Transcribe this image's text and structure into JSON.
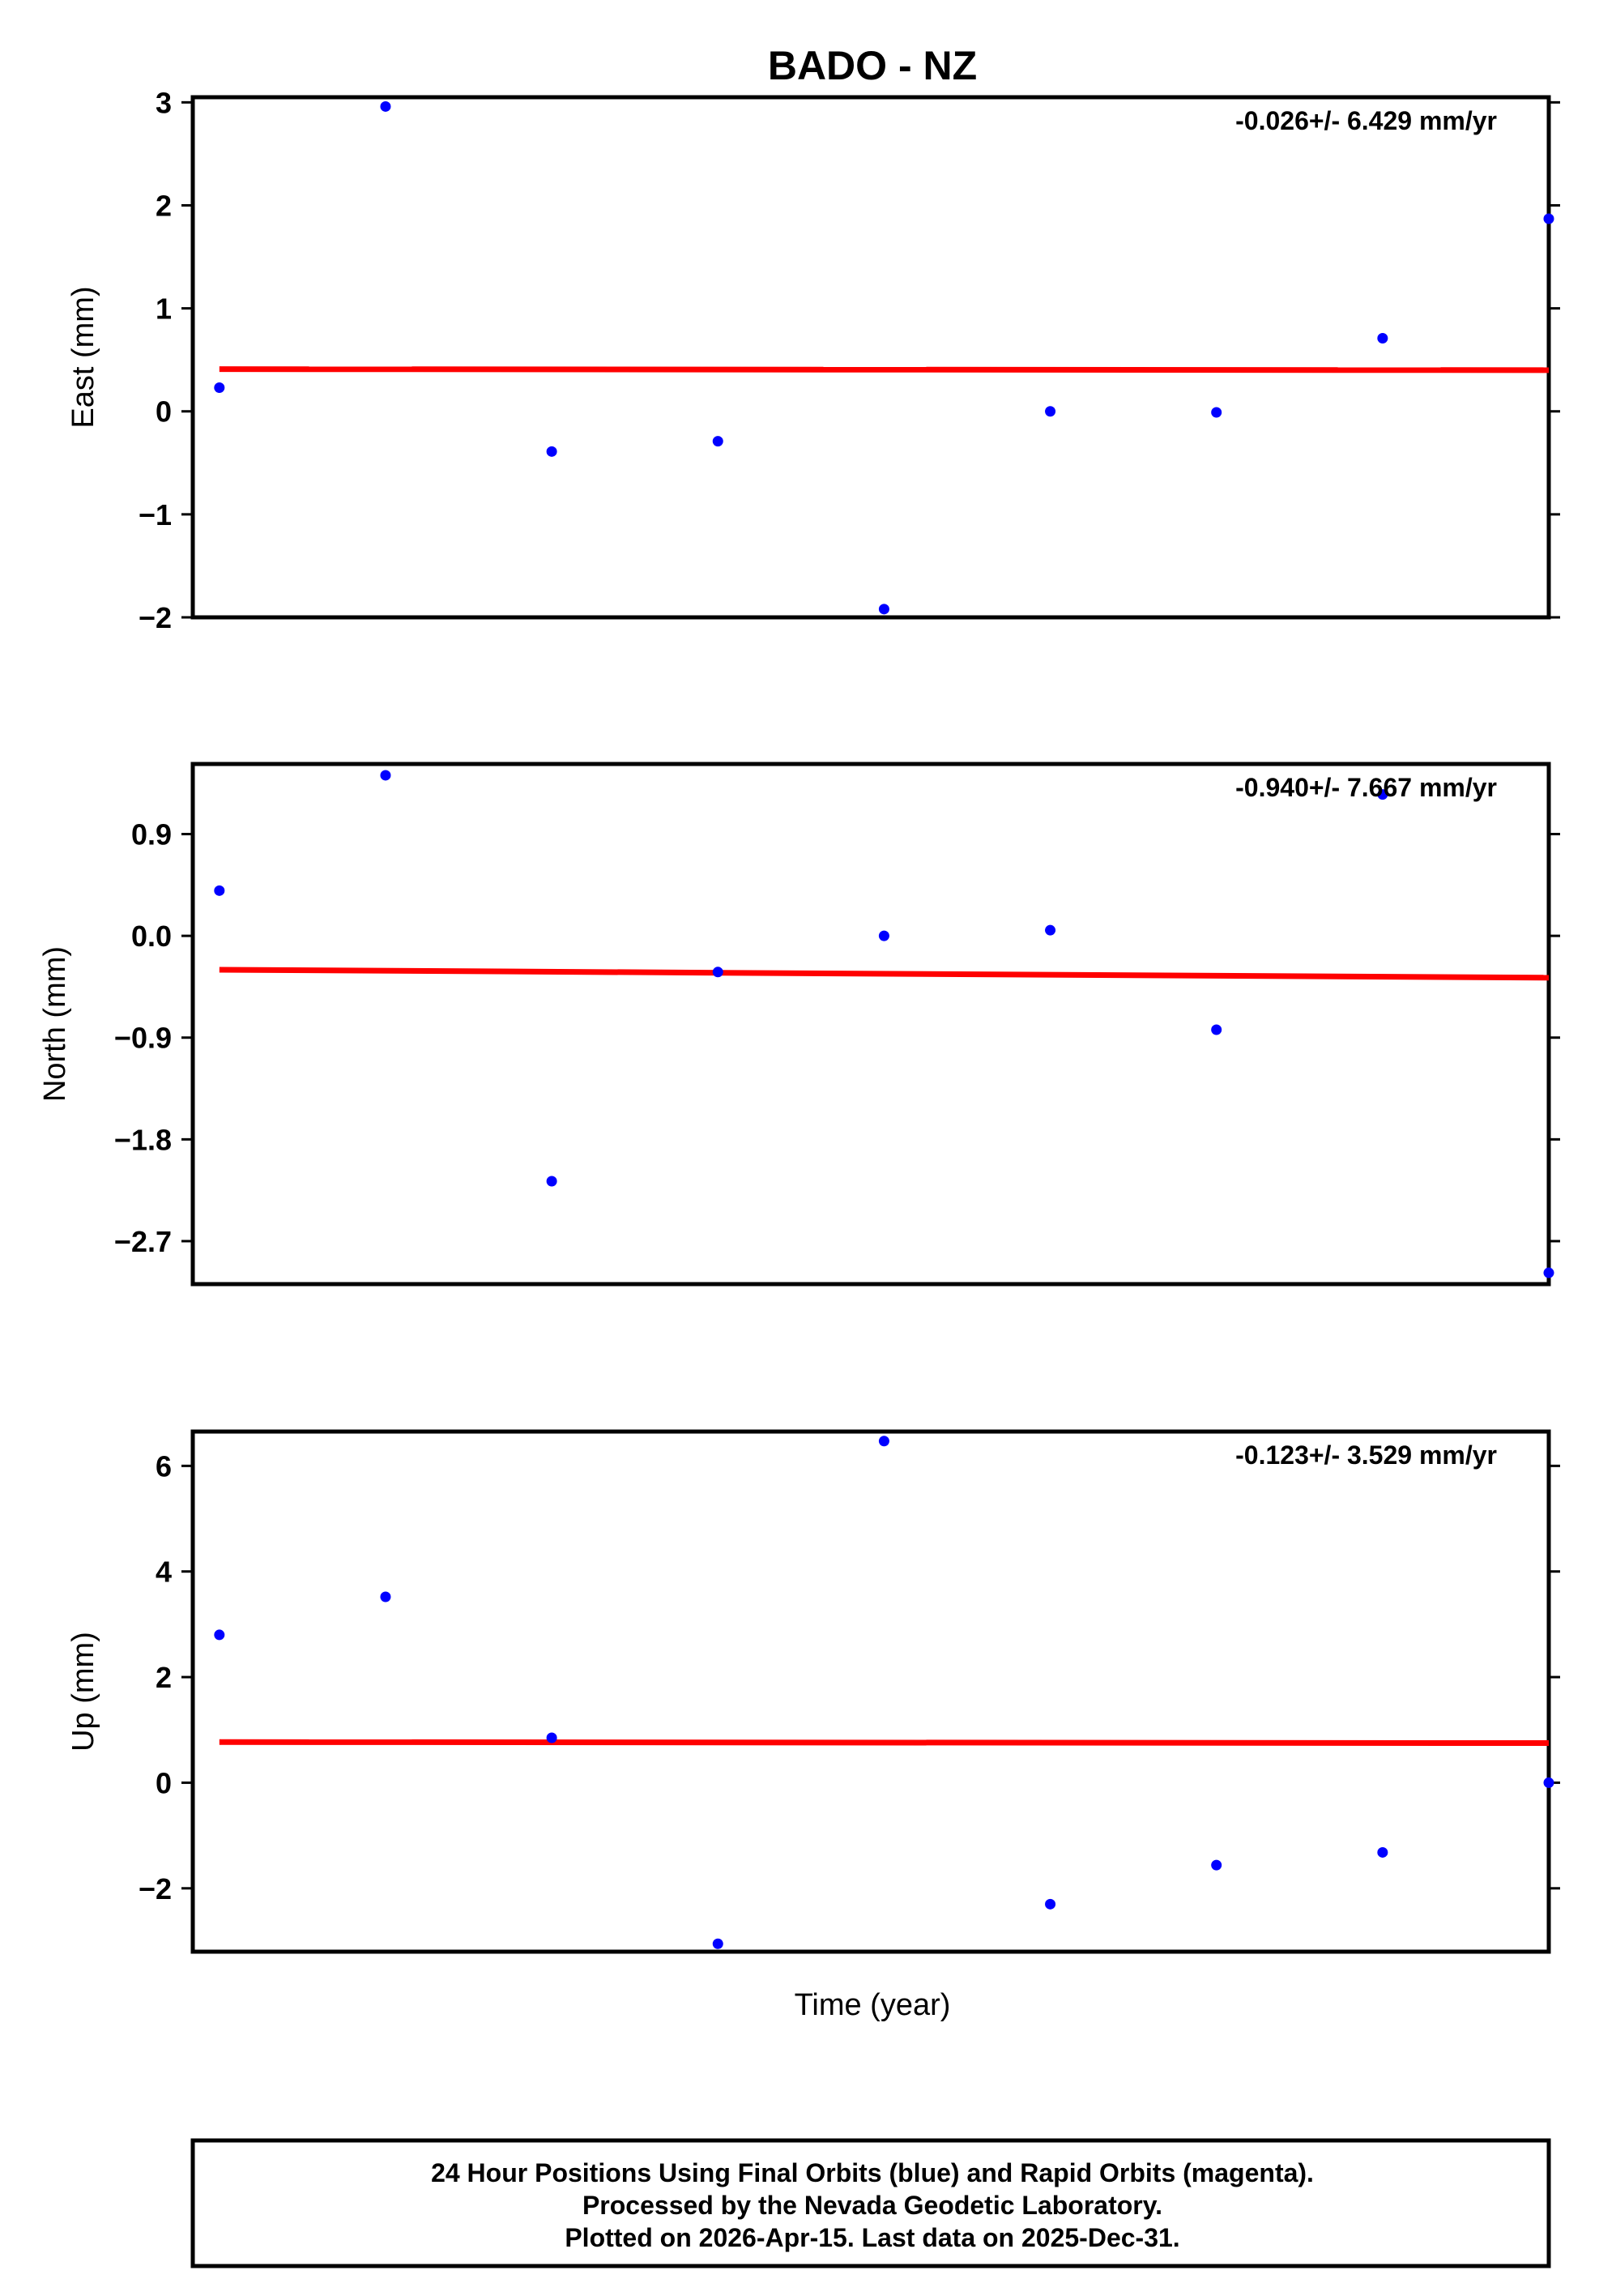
{
  "title": "BADO - NZ",
  "xlabel": "Time (year)",
  "colors": {
    "final_orbits": "#0000ff",
    "trend": "#ff0000",
    "frame": "#000000"
  },
  "footer": {
    "line1": "24 Hour Positions Using Final Orbits (blue) and Rapid Orbits (magenta).",
    "line2": "Processed by the Nevada Geodetic Laboratory.",
    "line3": "Plotted on 2026-Apr-15. Last data on 2025-Dec-31."
  },
  "chart_data": [
    {
      "type": "scatter",
      "ylabel": "East (mm)",
      "rate_label": "-0.026+/- 6.429 mm/yr",
      "ylim": [
        -2.0,
        3.05
      ],
      "yticks": [
        3,
        2,
        1,
        0,
        -1,
        -2
      ],
      "ytick_labels": [
        "3",
        "2",
        "1",
        "0",
        "−1",
        "−2"
      ],
      "x": [
        1,
        2,
        3,
        4,
        5,
        6,
        7,
        8,
        9
      ],
      "series": [
        {
          "values": [
            0.23,
            2.96,
            -0.39,
            -0.29,
            -1.92,
            0.0,
            -0.01,
            0.71,
            1.87
          ]
        }
      ],
      "trend": [
        0.41,
        0.4
      ]
    },
    {
      "type": "scatter",
      "ylabel": "North (mm)",
      "rate_label": "-0.940+/- 7.667 mm/yr",
      "ylim": [
        -3.08,
        1.52
      ],
      "yticks": [
        0.9,
        0.0,
        -0.9,
        -1.8,
        -2.7
      ],
      "ytick_labels": [
        "0.9",
        "0.0",
        "−0.9",
        "−1.8",
        "−2.7"
      ],
      "x": [
        1,
        2,
        3,
        4,
        5,
        6,
        7,
        8,
        9
      ],
      "series": [
        {
          "values": [
            0.4,
            1.42,
            -2.17,
            -0.32,
            0.0,
            0.05,
            -0.83,
            1.25,
            -2.98
          ]
        }
      ],
      "trend": [
        -0.3,
        -0.37
      ]
    },
    {
      "type": "scatter",
      "ylabel": "Up (mm)",
      "rate_label": "-0.123+/- 3.529 mm/yr",
      "ylim": [
        -3.2,
        6.65
      ],
      "yticks": [
        6,
        4,
        2,
        0,
        -2
      ],
      "ytick_labels": [
        "6",
        "4",
        "2",
        "0",
        "−2"
      ],
      "x": [
        1,
        2,
        3,
        4,
        5,
        6,
        7,
        8,
        9
      ],
      "series": [
        {
          "values": [
            2.8,
            3.52,
            0.85,
            -3.05,
            6.47,
            -2.3,
            -1.56,
            -1.32,
            0.0
          ]
        }
      ],
      "trend": [
        0.77,
        0.75
      ]
    }
  ]
}
